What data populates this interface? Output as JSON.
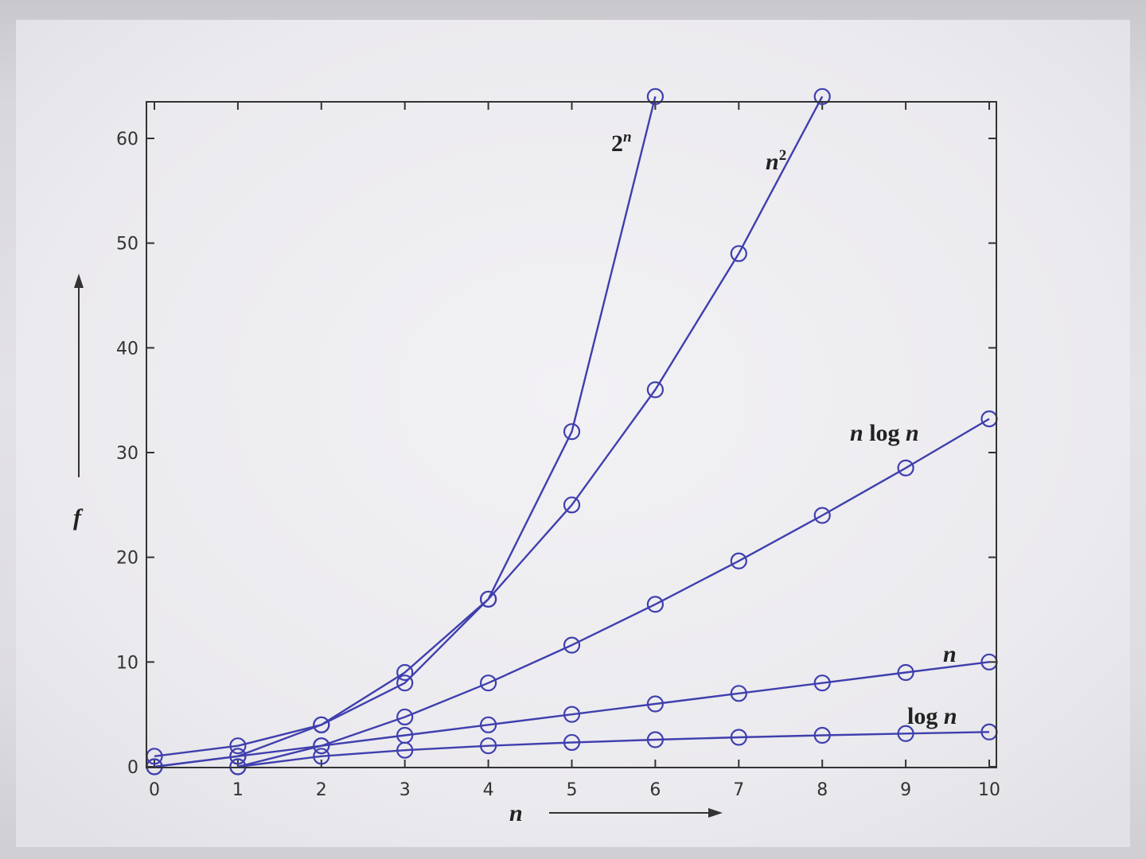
{
  "chart_data": {
    "type": "line",
    "title": "",
    "xlabel": "n",
    "ylabel": "f",
    "xlim": [
      0,
      10
    ],
    "ylim": [
      0,
      64
    ],
    "x_ticks": [
      0,
      1,
      2,
      3,
      4,
      5,
      6,
      7,
      8,
      9,
      10
    ],
    "y_ticks": [
      0,
      10,
      20,
      30,
      40,
      50,
      60
    ],
    "grid": false,
    "marker": "circle",
    "line_color": "#3f3fae",
    "series": [
      {
        "name": "2^n",
        "label_base": "2",
        "label_sup": "n",
        "x": [
          0,
          1,
          2,
          3,
          4,
          5,
          6
        ],
        "y": [
          1,
          2,
          4,
          8,
          16,
          32,
          64
        ]
      },
      {
        "name": "n^2",
        "label_base": "n",
        "label_sup": "2",
        "x": [
          0,
          1,
          2,
          3,
          4,
          5,
          6,
          7,
          8
        ],
        "y": [
          0,
          1,
          4,
          9,
          16,
          25,
          36,
          49,
          64
        ]
      },
      {
        "name": "n log n",
        "label_base": "n",
        "label_mid": " log ",
        "label_end": "n",
        "x": [
          1,
          2,
          3,
          4,
          5,
          6,
          7,
          8,
          9,
          10
        ],
        "y": [
          0,
          2,
          4.75,
          8,
          11.61,
          15.51,
          19.65,
          24,
          28.53,
          33.22
        ]
      },
      {
        "name": "n",
        "label_base": "n",
        "x": [
          0,
          1,
          2,
          3,
          4,
          5,
          6,
          7,
          8,
          9,
          10
        ],
        "y": [
          0,
          1,
          2,
          3,
          4,
          5,
          6,
          7,
          8,
          9,
          10
        ]
      },
      {
        "name": "log n",
        "label_mid": "log ",
        "label_end": "n",
        "x": [
          1,
          2,
          3,
          4,
          5,
          6,
          7,
          8,
          9,
          10
        ],
        "y": [
          0,
          1,
          1.58,
          2,
          2.32,
          2.58,
          2.81,
          3,
          3.17,
          3.32
        ]
      }
    ]
  }
}
